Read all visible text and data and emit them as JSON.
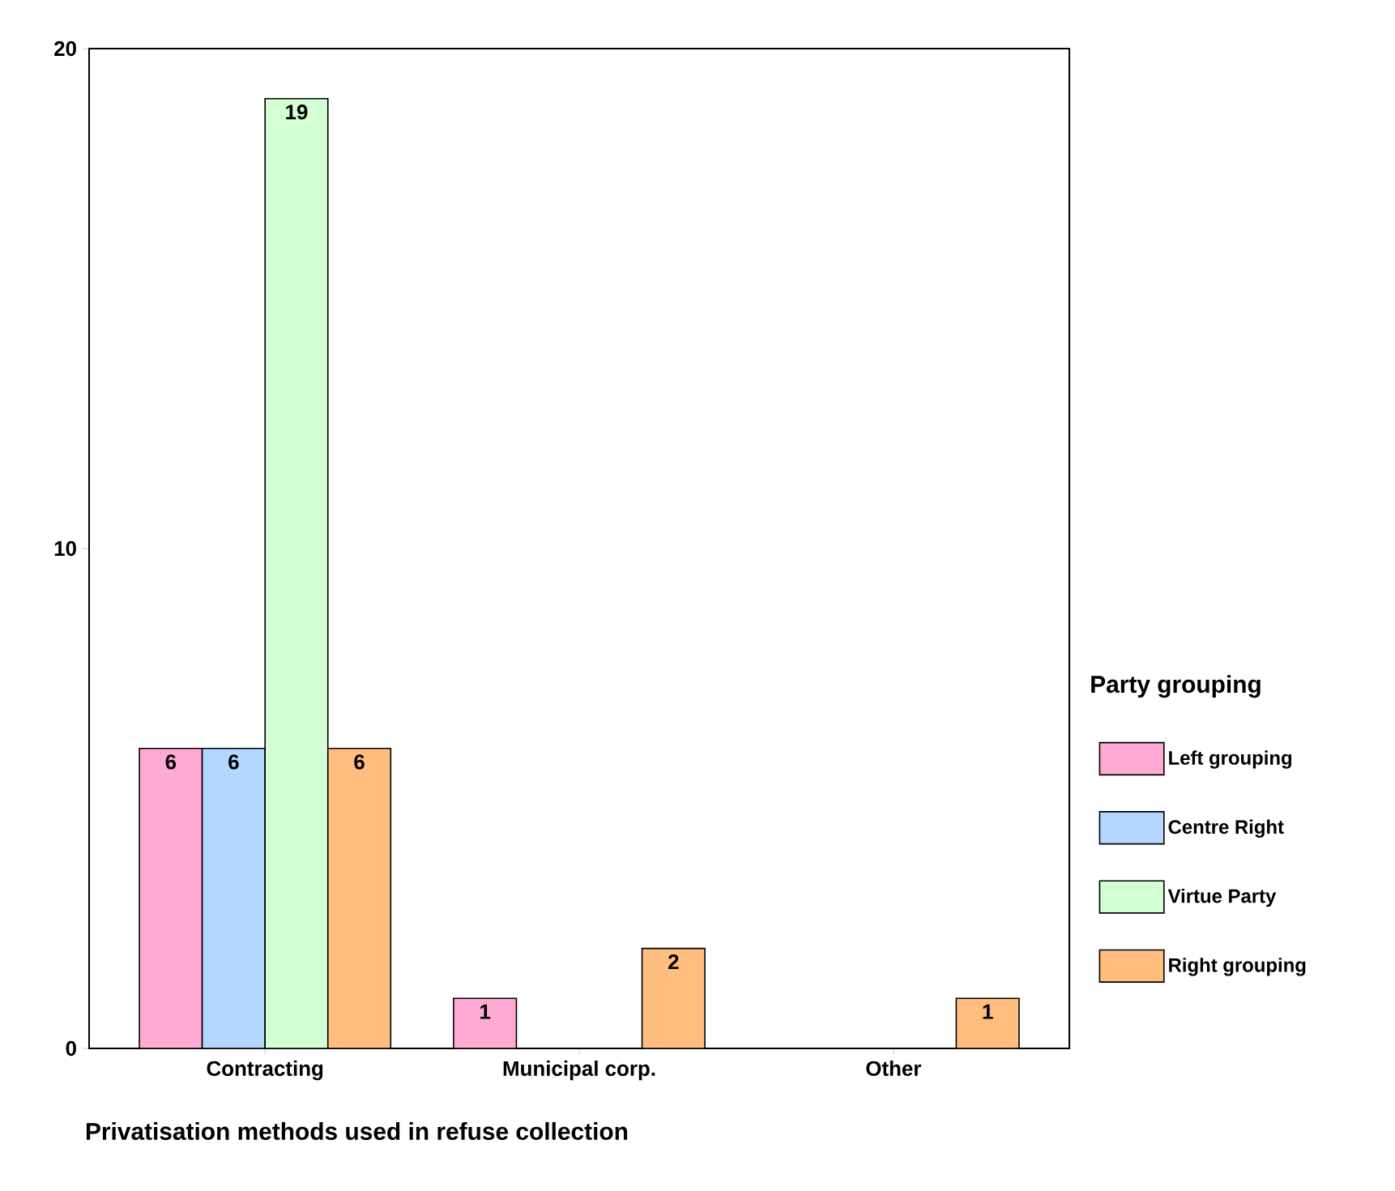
{
  "chart_data": {
    "type": "bar",
    "xlabel": "Privatisation methods used in refuse collection",
    "legend_title": "Party grouping",
    "categories": [
      "Contracting",
      "Municipal corp.",
      "Other"
    ],
    "series": [
      {
        "name": "Left grouping",
        "color": "#ffaad4",
        "values": [
          6,
          1,
          null
        ]
      },
      {
        "name": "Centre Right",
        "color": "#b4d7ff",
        "values": [
          6,
          null,
          null
        ]
      },
      {
        "name": "Virtue Party",
        "color": "#d4ffd4",
        "values": [
          19,
          null,
          null
        ]
      },
      {
        "name": "Right grouping",
        "color": "#ffbe80",
        "values": [
          6,
          2,
          1
        ]
      }
    ],
    "ylim": [
      0,
      20
    ],
    "yticks": [
      0,
      10,
      20
    ],
    "data_labels": true,
    "legend": "right",
    "grid": false
  }
}
